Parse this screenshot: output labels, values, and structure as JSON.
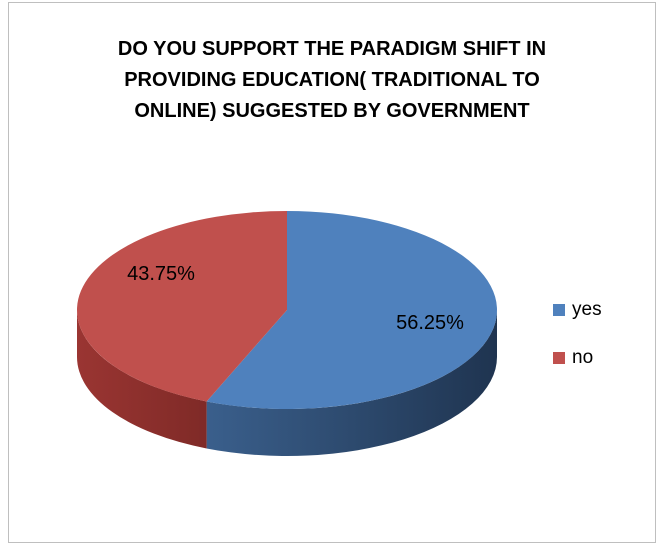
{
  "chart_data": {
    "type": "pie",
    "title": "DO YOU SUPPORT THE PARADIGM SHIFT IN\nPROVIDING EDUCATION( TRADITIONAL TO\nONLINE) SUGGESTED BY GOVERNMENT",
    "categories": [
      "yes",
      "no"
    ],
    "values": [
      56.25,
      43.75
    ],
    "data_labels": [
      "56.25%",
      "43.75%"
    ],
    "colors": [
      "#4f81bd",
      "#c0504d"
    ],
    "legend_position": "right",
    "style": "3d-pie"
  }
}
